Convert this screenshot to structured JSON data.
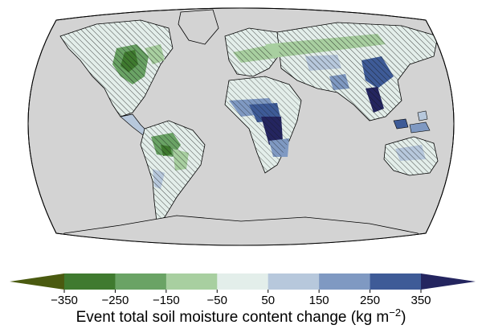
{
  "map": {
    "projection": "robinson-like",
    "ocean_color": "#d3d3d3",
    "land_outline_color": "#000000",
    "hatching": "stippled / hatched regions indicate low agreement"
  },
  "colorbar": {
    "ticks": [
      "−350",
      "−250",
      "−150",
      "−50",
      "50",
      "150",
      "250",
      "350"
    ],
    "label_main": "Event total soil moisture content change (kg m",
    "label_exp": "−2",
    "label_end": ")",
    "colors": [
      "#4a5a10",
      "#3f7a2f",
      "#6aa365",
      "#a8cfa0",
      "#e3eeea",
      "#b7c8dc",
      "#7f99c2",
      "#3e5b97",
      "#24255f"
    ],
    "extend": "both"
  }
}
